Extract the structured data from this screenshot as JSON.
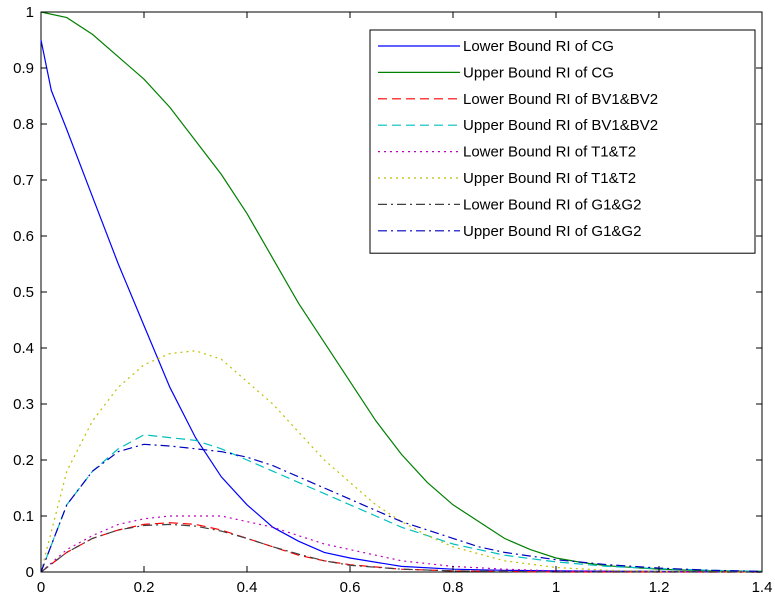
{
  "chart_data": {
    "type": "line",
    "title": "",
    "xlabel": "",
    "ylabel": "",
    "xlim": [
      0,
      1.4
    ],
    "ylim": [
      0,
      1
    ],
    "grid": false,
    "legend_position": "top-right",
    "xticks": [
      "0",
      "0.2",
      "0.4",
      "0.6",
      "0.8",
      "1",
      "1.2",
      "1.4"
    ],
    "yticks": [
      "0",
      "0.1",
      "0.2",
      "0.3",
      "0.4",
      "0.5",
      "0.6",
      "0.7",
      "0.8",
      "0.9",
      "1"
    ],
    "series": [
      {
        "name": "Lower Bound RI of CG",
        "color": "#0000ff",
        "dash": "solid",
        "x": [
          0,
          0.02,
          0.05,
          0.1,
          0.15,
          0.2,
          0.25,
          0.3,
          0.35,
          0.4,
          0.45,
          0.5,
          0.55,
          0.6,
          0.7,
          0.8,
          0.9,
          1.0,
          1.2,
          1.4
        ],
        "y": [
          0.95,
          0.86,
          0.79,
          0.67,
          0.55,
          0.44,
          0.33,
          0.24,
          0.17,
          0.12,
          0.08,
          0.055,
          0.035,
          0.025,
          0.01,
          0.005,
          0.003,
          0.002,
          0.001,
          0
        ]
      },
      {
        "name": "Upper Bound RI of CG",
        "color": "#008000",
        "dash": "solid",
        "x": [
          0,
          0.05,
          0.1,
          0.15,
          0.2,
          0.25,
          0.3,
          0.35,
          0.4,
          0.45,
          0.5,
          0.55,
          0.6,
          0.65,
          0.7,
          0.75,
          0.8,
          0.85,
          0.9,
          0.95,
          1.0,
          1.05,
          1.1,
          1.2,
          1.3,
          1.4
        ],
        "y": [
          1.0,
          0.99,
          0.96,
          0.92,
          0.88,
          0.83,
          0.77,
          0.71,
          0.64,
          0.56,
          0.48,
          0.41,
          0.34,
          0.27,
          0.21,
          0.16,
          0.12,
          0.09,
          0.06,
          0.04,
          0.025,
          0.017,
          0.011,
          0.005,
          0.002,
          0.001
        ]
      },
      {
        "name": "Lower Bound RI of BV1&BV2",
        "color": "#ff0000",
        "dash": "dashed",
        "x": [
          0,
          0.05,
          0.1,
          0.15,
          0.2,
          0.25,
          0.3,
          0.35,
          0.4,
          0.45,
          0.5,
          0.55,
          0.6,
          0.7,
          0.8,
          0.9,
          1.0,
          1.2,
          1.4
        ],
        "y": [
          0,
          0.035,
          0.06,
          0.075,
          0.085,
          0.088,
          0.085,
          0.075,
          0.06,
          0.045,
          0.03,
          0.02,
          0.013,
          0.005,
          0.002,
          0.001,
          0,
          0,
          0
        ]
      },
      {
        "name": "Upper Bound RI of BV1&BV2",
        "color": "#00bfbf",
        "dash": "dashed",
        "x": [
          0,
          0.05,
          0.1,
          0.15,
          0.2,
          0.25,
          0.3,
          0.35,
          0.4,
          0.45,
          0.5,
          0.55,
          0.6,
          0.65,
          0.7,
          0.75,
          0.8,
          0.85,
          0.9,
          1.0,
          1.1,
          1.2,
          1.3,
          1.4
        ],
        "y": [
          0,
          0.12,
          0.18,
          0.22,
          0.245,
          0.24,
          0.235,
          0.22,
          0.2,
          0.18,
          0.16,
          0.14,
          0.12,
          0.1,
          0.08,
          0.065,
          0.05,
          0.04,
          0.03,
          0.018,
          0.01,
          0.006,
          0.003,
          0.001
        ]
      },
      {
        "name": "Lower Bound RI of T1&T2",
        "color": "#bf00bf",
        "dash": "dotted",
        "x": [
          0,
          0.05,
          0.1,
          0.15,
          0.2,
          0.25,
          0.3,
          0.35,
          0.4,
          0.45,
          0.5,
          0.55,
          0.6,
          0.65,
          0.7,
          0.8,
          0.9,
          1.0,
          1.2,
          1.4
        ],
        "y": [
          0,
          0.04,
          0.065,
          0.085,
          0.095,
          0.1,
          0.1,
          0.1,
          0.09,
          0.08,
          0.065,
          0.05,
          0.04,
          0.03,
          0.02,
          0.01,
          0.005,
          0.002,
          0,
          0
        ]
      },
      {
        "name": "Upper Bound RI of T1&T2",
        "color": "#bfbf00",
        "dash": "dotted",
        "x": [
          0,
          0.05,
          0.1,
          0.15,
          0.2,
          0.25,
          0.3,
          0.35,
          0.4,
          0.45,
          0.5,
          0.55,
          0.6,
          0.65,
          0.7,
          0.75,
          0.8,
          0.9,
          1.0,
          1.1,
          1.2,
          1.3,
          1.4
        ],
        "y": [
          0,
          0.18,
          0.27,
          0.33,
          0.37,
          0.39,
          0.395,
          0.38,
          0.34,
          0.3,
          0.25,
          0.2,
          0.16,
          0.12,
          0.09,
          0.065,
          0.045,
          0.02,
          0.008,
          0.003,
          0.001,
          0,
          0
        ]
      },
      {
        "name": "Lower Bound RI of G1&G2",
        "color": "#404040",
        "dash": "dashdot",
        "x": [
          0,
          0.05,
          0.1,
          0.15,
          0.2,
          0.25,
          0.3,
          0.35,
          0.4,
          0.45,
          0.5,
          0.55,
          0.6,
          0.7,
          0.8,
          0.9,
          1.0,
          1.2,
          1.4
        ],
        "y": [
          0,
          0.035,
          0.06,
          0.075,
          0.083,
          0.085,
          0.082,
          0.073,
          0.06,
          0.045,
          0.032,
          0.02,
          0.012,
          0.005,
          0.002,
          0.001,
          0,
          0,
          0
        ]
      },
      {
        "name": "Upper Bound RI of G1&G2",
        "color": "#0000bf",
        "dash": "dashdot",
        "x": [
          0,
          0.05,
          0.1,
          0.15,
          0.2,
          0.25,
          0.3,
          0.35,
          0.4,
          0.45,
          0.5,
          0.55,
          0.6,
          0.65,
          0.7,
          0.75,
          0.8,
          0.85,
          0.9,
          1.0,
          1.1,
          1.2,
          1.3,
          1.4
        ],
        "y": [
          0,
          0.12,
          0.18,
          0.215,
          0.228,
          0.225,
          0.22,
          0.215,
          0.205,
          0.19,
          0.17,
          0.15,
          0.13,
          0.11,
          0.09,
          0.075,
          0.06,
          0.045,
          0.035,
          0.022,
          0.013,
          0.007,
          0.003,
          0.001
        ]
      }
    ]
  }
}
